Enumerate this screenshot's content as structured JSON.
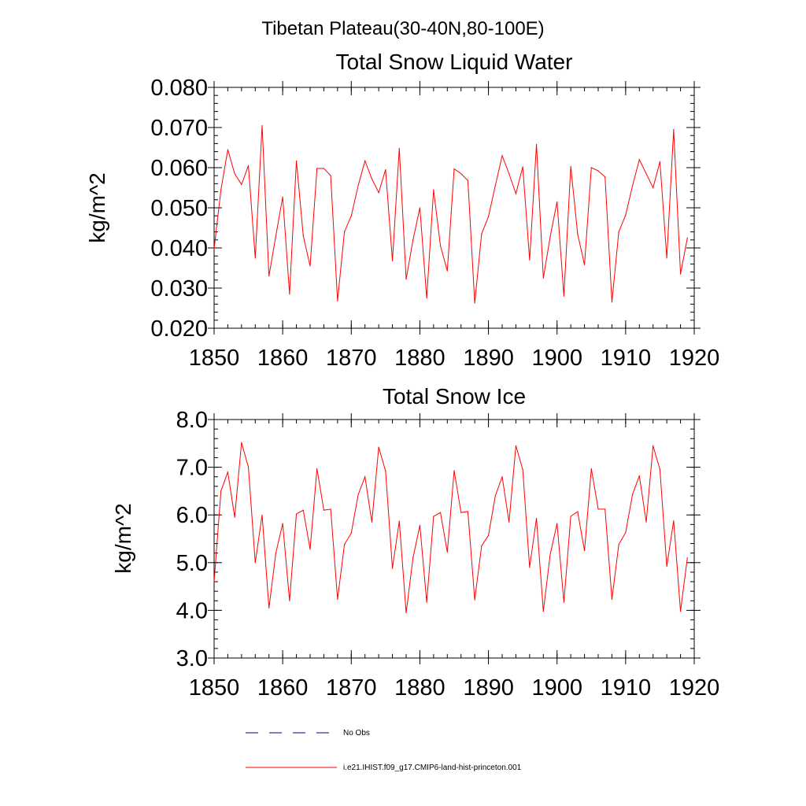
{
  "figure": {
    "suptitle": "Tibetan Plateau(30-40N,80-100E)"
  },
  "colors": {
    "model_line": "#ff0000",
    "obs_line": "#000080",
    "axis": "#000000"
  },
  "legend": {
    "placement": "bottom-center",
    "entries": [
      {
        "label": "No Obs",
        "style": "dashed",
        "color": "#000080"
      },
      {
        "label": "i.e21.IHIST.f09_g17.CMIP6-land-hist-princeton.001",
        "style": "solid",
        "color": "#ff0000"
      }
    ]
  },
  "chart_data": [
    {
      "type": "line",
      "title": "Total Snow Liquid Water",
      "xlabel": "",
      "ylabel": "kg/m^2",
      "xlim": [
        1850,
        1920
      ],
      "ylim": [
        0.02,
        0.08
      ],
      "xticks": [
        1850,
        1860,
        1870,
        1880,
        1890,
        1900,
        1910,
        1920
      ],
      "xtick_labels": [
        "1850",
        "1860",
        "1870",
        "1880",
        "1890",
        "1900",
        "1910",
        "1920"
      ],
      "yticks": [
        0.02,
        0.03,
        0.04,
        0.05,
        0.06,
        0.07,
        0.08
      ],
      "ytick_labels": [
        "0.020",
        "0.030",
        "0.040",
        "0.050",
        "0.060",
        "0.070",
        "0.080"
      ],
      "y_minor_step": 0.002,
      "x_minor_step": 2,
      "grid": false,
      "x": [
        1850,
        1851,
        1852,
        1853,
        1854,
        1855,
        1856,
        1857,
        1858,
        1859,
        1860,
        1861,
        1862,
        1863,
        1864,
        1865,
        1866,
        1867,
        1868,
        1869,
        1870,
        1871,
        1872,
        1873,
        1874,
        1875,
        1876,
        1877,
        1878,
        1879,
        1880,
        1881,
        1882,
        1883,
        1884,
        1885,
        1886,
        1887,
        1888,
        1889,
        1890,
        1891,
        1892,
        1893,
        1894,
        1895,
        1896,
        1897,
        1898,
        1899,
        1900,
        1901,
        1902,
        1903,
        1904,
        1905,
        1906,
        1907,
        1908,
        1909,
        1910,
        1911,
        1912,
        1913,
        1914,
        1915,
        1916,
        1917,
        1918,
        1919
      ],
      "series": [
        {
          "values": [
            0.0398,
            0.0545,
            0.0645,
            0.0585,
            0.0558,
            0.0605,
            0.0375,
            0.0705,
            0.033,
            0.043,
            0.0527,
            0.0285,
            0.0617,
            0.043,
            0.0355,
            0.0598,
            0.0598,
            0.058,
            0.0268,
            0.044,
            0.048,
            0.0555,
            0.0617,
            0.0572,
            0.0538,
            0.0595,
            0.0368,
            0.0648,
            0.0322,
            0.042,
            0.05,
            0.0275,
            0.0545,
            0.0405,
            0.0343,
            0.0597,
            0.0585,
            0.0568,
            0.0263,
            0.0435,
            0.0478,
            0.0555,
            0.063,
            0.0585,
            0.0535,
            0.0602,
            0.037,
            0.0658,
            0.0325,
            0.0428,
            0.0515,
            0.028,
            0.0603,
            0.0435,
            0.0358,
            0.06,
            0.0592,
            0.0577,
            0.0265,
            0.044,
            0.0482,
            0.0555,
            0.062,
            0.0585,
            0.055,
            0.0615,
            0.0375,
            0.0695,
            0.0335,
            0.0425
          ]
        }
      ]
    },
    {
      "type": "line",
      "title": "Total Snow Ice",
      "xlabel": "",
      "ylabel": "kg/m^2",
      "xlim": [
        1850,
        1920
      ],
      "ylim": [
        3.0,
        8.0
      ],
      "xticks": [
        1850,
        1860,
        1870,
        1880,
        1890,
        1900,
        1910,
        1920
      ],
      "xtick_labels": [
        "1850",
        "1860",
        "1870",
        "1880",
        "1890",
        "1900",
        "1910",
        "1920"
      ],
      "yticks": [
        3.0,
        4.0,
        5.0,
        6.0,
        7.0,
        8.0
      ],
      "ytick_labels": [
        "3.0",
        "4.0",
        "5.0",
        "6.0",
        "7.0",
        "8.0"
      ],
      "y_minor_step": 0.2,
      "x_minor_step": 2,
      "grid": false,
      "x": [
        1850,
        1851,
        1852,
        1853,
        1854,
        1855,
        1856,
        1857,
        1858,
        1859,
        1860,
        1861,
        1862,
        1863,
        1864,
        1865,
        1866,
        1867,
        1868,
        1869,
        1870,
        1871,
        1872,
        1873,
        1874,
        1875,
        1876,
        1877,
        1878,
        1879,
        1880,
        1881,
        1882,
        1883,
        1884,
        1885,
        1886,
        1887,
        1888,
        1889,
        1890,
        1891,
        1892,
        1893,
        1894,
        1895,
        1896,
        1897,
        1898,
        1899,
        1900,
        1901,
        1902,
        1903,
        1904,
        1905,
        1906,
        1907,
        1908,
        1909,
        1910,
        1911,
        1912,
        1913,
        1914,
        1915,
        1916,
        1917,
        1918,
        1919
      ],
      "series": [
        {
          "values": [
            4.6,
            6.5,
            6.9,
            5.95,
            7.52,
            7.0,
            5.0,
            6.0,
            4.05,
            5.2,
            5.82,
            4.2,
            6.02,
            6.1,
            5.28,
            6.97,
            6.1,
            6.12,
            4.23,
            5.38,
            5.62,
            6.42,
            6.8,
            5.85,
            7.42,
            6.92,
            4.88,
            5.87,
            3.95,
            5.1,
            5.78,
            4.17,
            5.97,
            6.05,
            5.22,
            6.93,
            6.05,
            6.07,
            4.22,
            5.35,
            5.57,
            6.4,
            6.8,
            5.85,
            7.45,
            6.95,
            4.9,
            5.93,
            3.98,
            5.17,
            5.82,
            4.17,
            5.97,
            6.07,
            5.25,
            6.97,
            6.12,
            6.12,
            4.23,
            5.38,
            5.63,
            6.43,
            6.82,
            5.85,
            7.45,
            6.95,
            4.92,
            5.88,
            3.98,
            5.1
          ]
        }
      ]
    }
  ]
}
